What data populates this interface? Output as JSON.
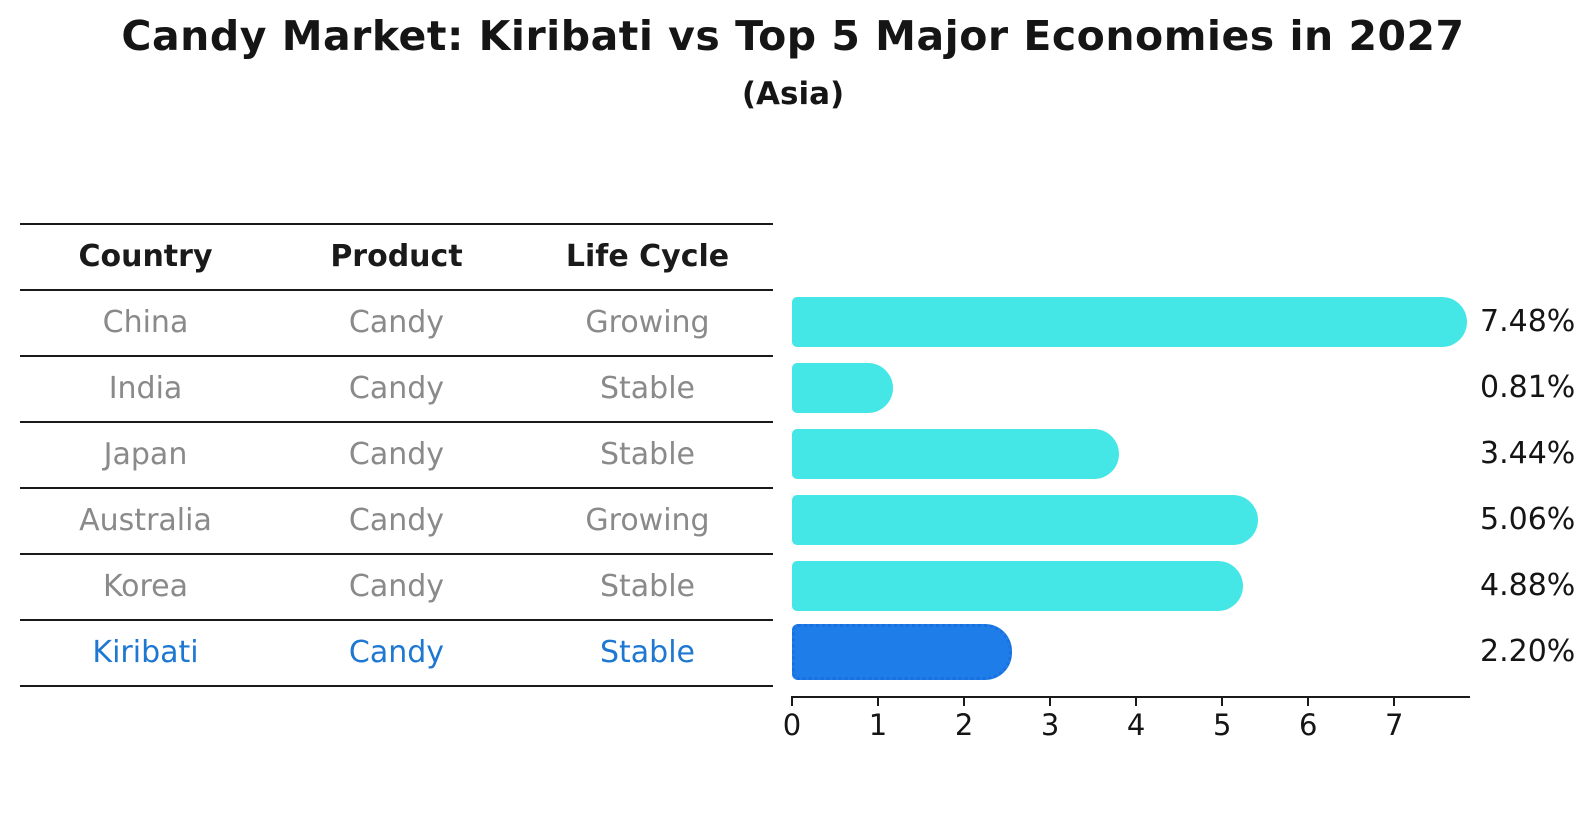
{
  "title": "Candy Market: Kiribati vs Top 5 Major Economies in 2027",
  "subtitle": "(Asia)",
  "table": {
    "columns": [
      "Country",
      "Product",
      "Life Cycle"
    ],
    "rows": [
      {
        "country": "China",
        "product": "Candy",
        "life_cycle": "Growing",
        "highlighted": false
      },
      {
        "country": "India",
        "product": "Candy",
        "life_cycle": "Stable",
        "highlighted": false
      },
      {
        "country": "Japan",
        "product": "Candy",
        "life_cycle": "Stable",
        "highlighted": false
      },
      {
        "country": "Australia",
        "product": "Candy",
        "life_cycle": "Growing",
        "highlighted": false
      },
      {
        "country": "Korea",
        "product": "Candy",
        "life_cycle": "Stable",
        "highlighted": false
      },
      {
        "country": "Kiribati",
        "product": "Candy",
        "life_cycle": "Stable",
        "highlighted": true
      }
    ]
  },
  "chart_data": {
    "type": "bar",
    "orientation": "horizontal",
    "title": "Candy Market: Kiribati vs Top 5 Major Economies in 2027",
    "subtitle": "(Asia)",
    "categories": [
      "China",
      "India",
      "Japan",
      "Australia",
      "Korea",
      "Kiribati"
    ],
    "values": [
      7.48,
      0.81,
      3.44,
      5.06,
      4.88,
      2.2
    ],
    "value_labels": [
      "7.48%",
      "0.81%",
      "3.44%",
      "5.06%",
      "4.88%",
      "2.20%"
    ],
    "highlight_index": 5,
    "x_ticks": [
      0,
      1,
      2,
      3,
      4,
      5,
      6,
      7
    ],
    "xlim": [
      0,
      7.88
    ],
    "xlabel": "",
    "ylabel": "",
    "grid": false,
    "legend": false,
    "colors": {
      "bar": "#45E6E6",
      "highlight_bar": "#1E7DE8",
      "highlight_bar_edge": "#1871DD",
      "highlight_text": "#1E78D2",
      "table_text": "#8A8A8A",
      "header_text": "#1A1A1A",
      "axis": "#1A1A1A"
    }
  }
}
